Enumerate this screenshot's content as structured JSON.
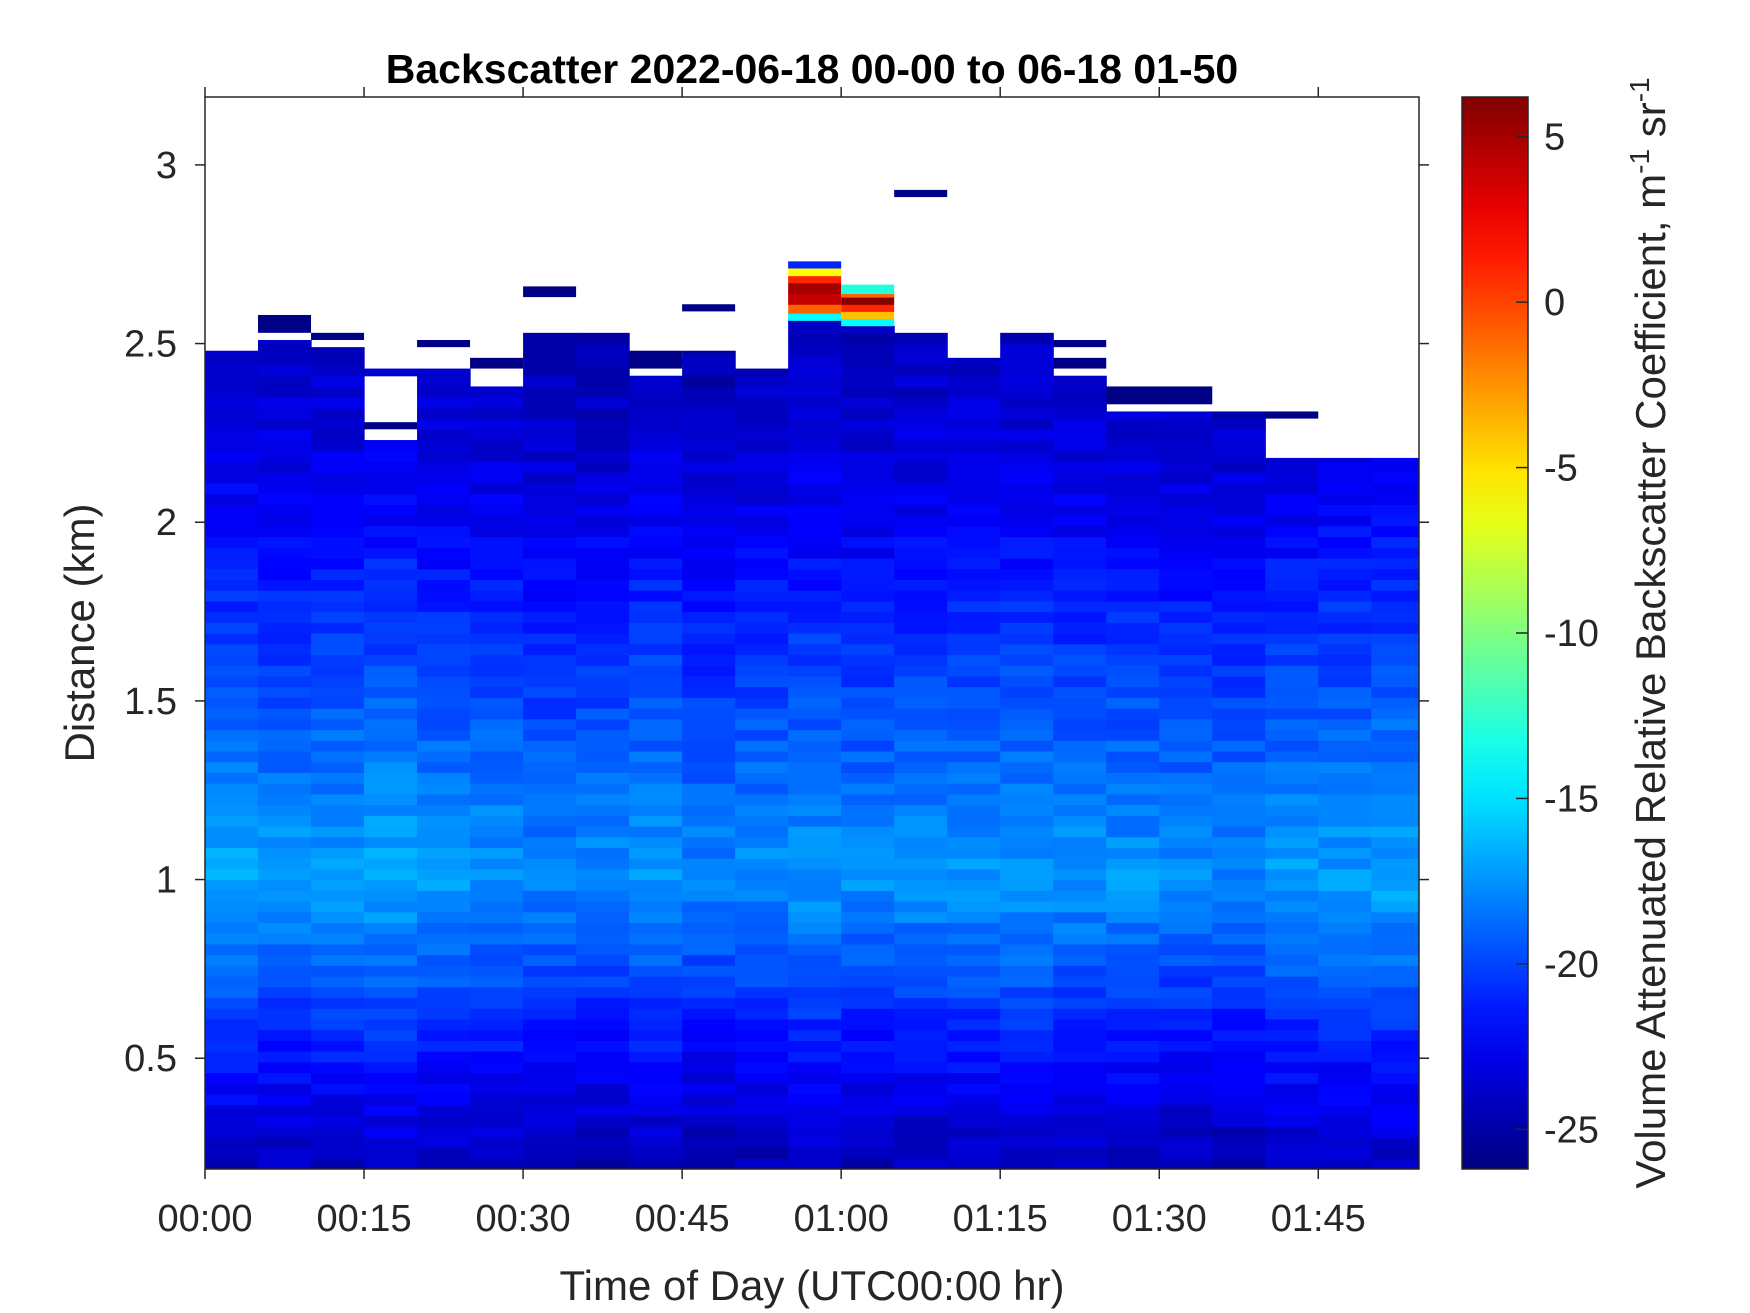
{
  "chart_data": {
    "type": "heatmap",
    "title": "Backscatter 2022-06-18 00-00 to 06-18 01-50",
    "xlabel": "Time of Day (UTC00:00 hr)",
    "ylabel": "Distance (km)",
    "colorbar_label": "Volume Attenuated Relative Backscatter Coefficient, m",
    "colorbar_unit_sup1": "-1",
    "colorbar_unit_mid": " sr",
    "colorbar_unit_sup2": "-1",
    "colormap": "jet",
    "x_ticks": [
      "00:00",
      "00:15",
      "00:30",
      "00:45",
      "01:00",
      "01:15",
      "01:30",
      "01:45"
    ],
    "x_tick_minutes": [
      0,
      15,
      30,
      45,
      60,
      75,
      90,
      105
    ],
    "xlim_minutes": [
      0,
      114.5
    ],
    "y_ticks": [
      "0.5",
      "1",
      "1.5",
      "2",
      "2.5",
      "3"
    ],
    "y_tick_values": [
      0.5,
      1,
      1.5,
      2,
      2.5,
      3
    ],
    "ylim_km": [
      0.19,
      3.19
    ],
    "colorbar_ticks": [
      "-25",
      "-20",
      "-15",
      "-10",
      "-5",
      "0",
      "5"
    ],
    "colorbar_tick_values": [
      -25,
      -20,
      -15,
      -10,
      -5,
      0,
      5
    ],
    "clim": [
      -26.2,
      6.2
    ],
    "profile_start_minutes": [
      0,
      5,
      10,
      15,
      20,
      25,
      30,
      35,
      40,
      45,
      50,
      55,
      60,
      65,
      70,
      75,
      80,
      85,
      90,
      95,
      100,
      105,
      110
    ],
    "profile_width_minutes": 5,
    "profile_top_km": [
      2.48,
      2.51,
      2.49,
      2.43,
      2.43,
      2.38,
      2.53,
      2.53,
      2.46,
      2.48,
      2.43,
      2.57,
      2.55,
      2.53,
      2.46,
      2.53,
      2.41,
      2.31,
      2.31,
      2.31,
      2.18,
      2.18,
      2.18
    ],
    "profile_gaps_km": [
      [],
      [],
      [],
      [
        [
          2.22,
          2.41
        ]
      ],
      [],
      [],
      [],
      [],
      [
        [
          2.41,
          2.43
        ]
      ],
      [],
      [],
      [],
      [],
      [],
      [],
      [],
      [],
      [],
      [],
      [],
      [],
      [],
      []
    ],
    "isolated_returns": [
      {
        "start_min": 5,
        "end_min": 10,
        "bottom_km": 2.53,
        "top_km": 2.58,
        "value": -26
      },
      {
        "start_min": 10,
        "end_min": 15,
        "bottom_km": 2.51,
        "top_km": 2.53,
        "value": -26
      },
      {
        "start_min": 15,
        "end_min": 20,
        "bottom_km": 2.26,
        "top_km": 2.28,
        "value": -26
      },
      {
        "start_min": 20,
        "end_min": 25,
        "bottom_km": 2.49,
        "top_km": 2.51,
        "value": -26
      },
      {
        "start_min": 25,
        "end_min": 30,
        "bottom_km": 2.43,
        "top_km": 2.46,
        "value": -26
      },
      {
        "start_min": 30,
        "end_min": 35,
        "bottom_km": 2.63,
        "top_km": 2.66,
        "value": -26
      },
      {
        "start_min": 40,
        "end_min": 45,
        "bottom_km": 2.43,
        "top_km": 2.48,
        "value": -26
      },
      {
        "start_min": 45,
        "end_min": 50,
        "bottom_km": 2.59,
        "top_km": 2.61,
        "value": -26
      },
      {
        "start_min": 55,
        "end_min": 60,
        "bottom_km": 2.71,
        "top_km": 2.73,
        "value": -21
      },
      {
        "start_min": 65,
        "end_min": 70,
        "bottom_km": 2.91,
        "top_km": 2.93,
        "value": -26
      },
      {
        "start_min": 80,
        "end_min": 85,
        "bottom_km": 2.49,
        "top_km": 2.51,
        "value": -26
      },
      {
        "start_min": 80,
        "end_min": 85,
        "bottom_km": 2.43,
        "top_km": 2.46,
        "value": -26
      },
      {
        "start_min": 85,
        "end_min": 95,
        "bottom_km": 2.33,
        "top_km": 2.38,
        "value": -26
      },
      {
        "start_min": 100,
        "end_min": 105,
        "bottom_km": 2.29,
        "top_km": 2.31,
        "value": -26
      }
    ],
    "cloud_cells": [
      {
        "start_min": 55,
        "end_min": 60,
        "bottom_km": 2.565,
        "top_km": 2.585,
        "value": -14
      },
      {
        "start_min": 55,
        "end_min": 60,
        "bottom_km": 2.585,
        "top_km": 2.61,
        "value": -1
      },
      {
        "start_min": 55,
        "end_min": 60,
        "bottom_km": 2.61,
        "top_km": 2.64,
        "value": 4
      },
      {
        "start_min": 55,
        "end_min": 60,
        "bottom_km": 2.64,
        "top_km": 2.67,
        "value": 5
      },
      {
        "start_min": 55,
        "end_min": 60,
        "bottom_km": 2.67,
        "top_km": 2.69,
        "value": 1
      },
      {
        "start_min": 55,
        "end_min": 60,
        "bottom_km": 2.69,
        "top_km": 2.71,
        "value": -6
      },
      {
        "start_min": 60,
        "end_min": 65,
        "bottom_km": 2.55,
        "top_km": 2.57,
        "value": -14
      },
      {
        "start_min": 60,
        "end_min": 65,
        "bottom_km": 2.57,
        "top_km": 2.59,
        "value": -4
      },
      {
        "start_min": 60,
        "end_min": 65,
        "bottom_km": 2.59,
        "top_km": 2.61,
        "value": 1
      },
      {
        "start_min": 60,
        "end_min": 65,
        "bottom_km": 2.61,
        "top_km": 2.63,
        "value": 6
      },
      {
        "start_min": 60,
        "end_min": 65,
        "bottom_km": 2.63,
        "top_km": 2.64,
        "value": -1
      },
      {
        "start_min": 60,
        "end_min": 65,
        "bottom_km": 2.64,
        "top_km": 2.665,
        "value": -13
      }
    ],
    "background_profile": {
      "heights_km": [
        0.19,
        0.4,
        0.6,
        0.8,
        1.0,
        1.2,
        1.5,
        1.8,
        2.0,
        2.3,
        2.6
      ],
      "values": [
        -24.5,
        -22.8,
        -21.0,
        -19.0,
        -17.4,
        -18.2,
        -19.8,
        -21.3,
        -22.5,
        -23.7,
        -24.3
      ]
    },
    "profile_value_offsets": [
      0.5,
      0.2,
      0.3,
      0.6,
      0.2,
      0.0,
      -0.4,
      -0.3,
      0.1,
      -0.5,
      -0.2,
      0.1,
      -0.2,
      0.0,
      0.1,
      0.2,
      0.0,
      0.0,
      -0.3,
      -0.4,
      0.2,
      0.3,
      0.5
    ]
  }
}
